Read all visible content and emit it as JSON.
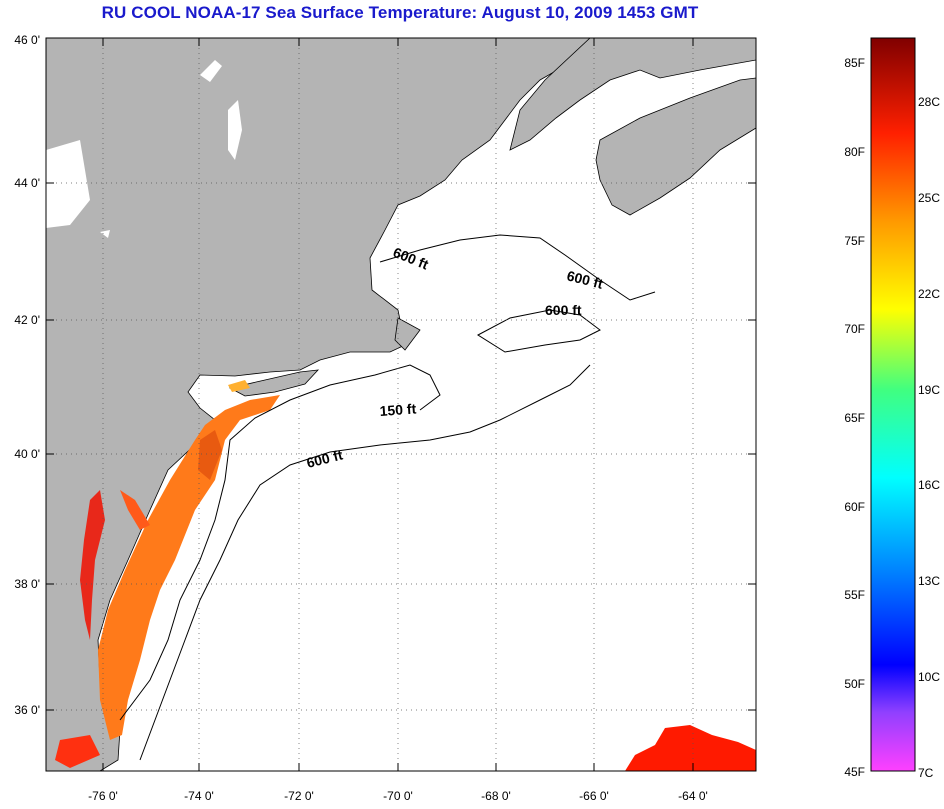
{
  "title": "RU COOL  NOAA-17  Sea Surface Temperature:  August 10, 2009 1453 GMT",
  "map": {
    "lon_ticks": [
      "-76 0'",
      "-74 0'",
      "-72 0'",
      "-70 0'",
      "-68 0'",
      "-66 0'",
      "-64 0'"
    ],
    "lat_ticks": [
      "46 0'",
      "44 0'",
      "42 0'",
      "40 0'",
      "38 0'",
      "36 0'"
    ],
    "contour_labels": [
      "600 ft",
      "600 ft",
      "600 ft",
      "150 ft",
      "600 ft"
    ],
    "colors": {
      "land": "#b4b4b4",
      "ocean_nodata": "#ffffff",
      "coast": "#000000"
    }
  },
  "colorbar": {
    "f_labels": [
      "85F",
      "80F",
      "75F",
      "70F",
      "65F",
      "60F",
      "55F",
      "50F",
      "45F"
    ],
    "c_labels": [
      "28C",
      "25C",
      "22C",
      "19C",
      "16C",
      "13C",
      "10C",
      "7C"
    ],
    "range_f": [
      45,
      87
    ],
    "gradient": [
      "#800000",
      "#ff0000",
      "#ff8000",
      "#ffff00",
      "#80ff40",
      "#00ffff",
      "#0080ff",
      "#0000ff",
      "#8000ff",
      "#ff40ff"
    ]
  }
}
